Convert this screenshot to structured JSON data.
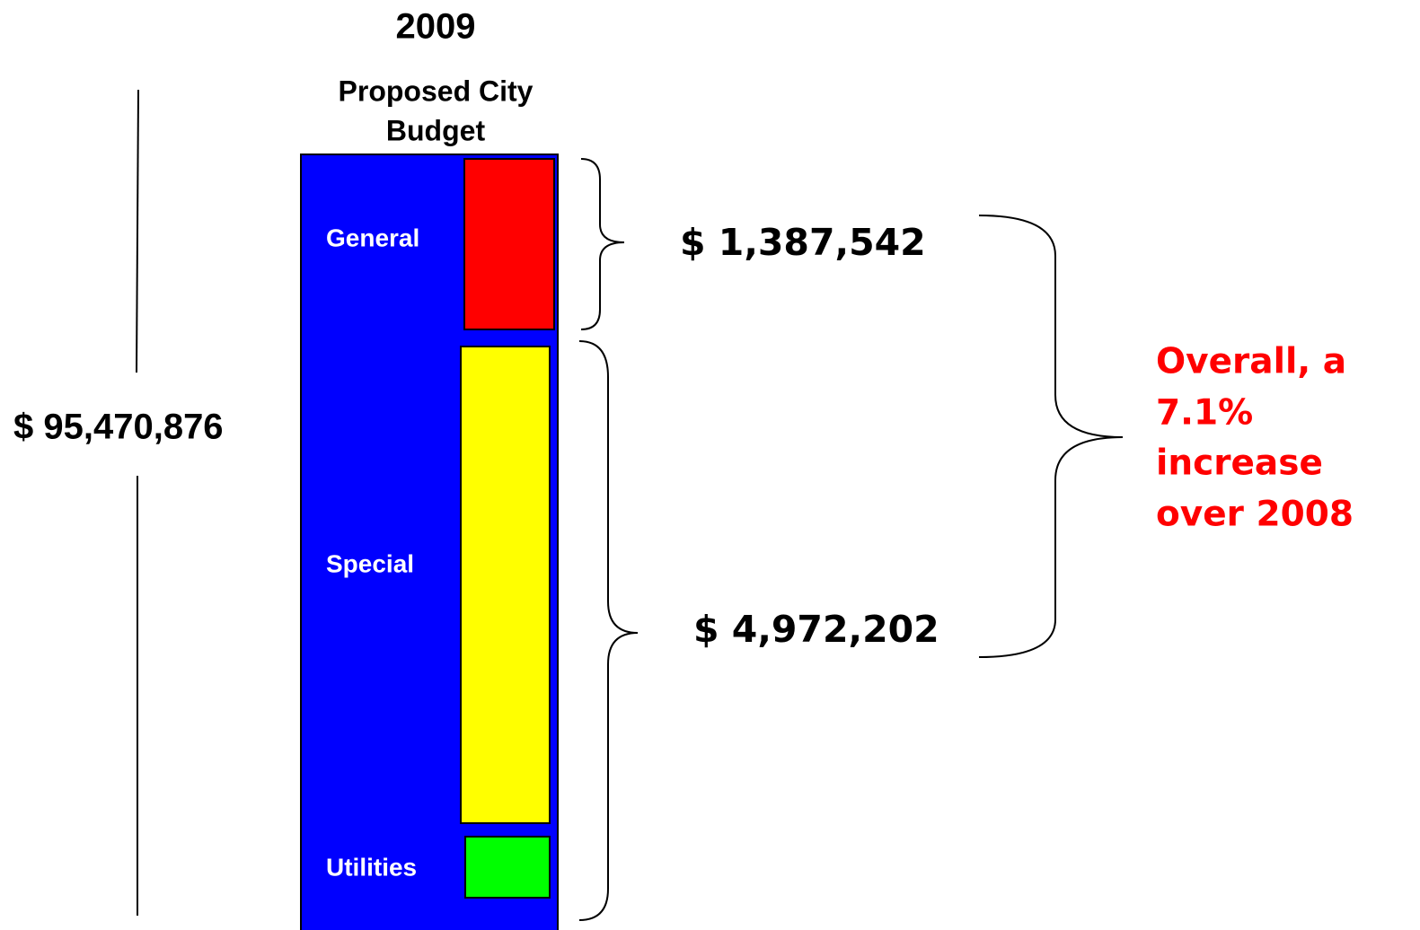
{
  "header": {
    "year": "2009",
    "subtitle": [
      "Proposed City",
      "Budget"
    ]
  },
  "total": "$ 95,470,876",
  "segments": [
    {
      "label": "General"
    },
    {
      "label": "Special"
    },
    {
      "label": "Utilities"
    }
  ],
  "increases": [
    "$ 1,387,542",
    "$ 4,972,202"
  ],
  "summary": [
    "Overall, a",
    "7.1%",
    "increase",
    "over 2008"
  ]
}
